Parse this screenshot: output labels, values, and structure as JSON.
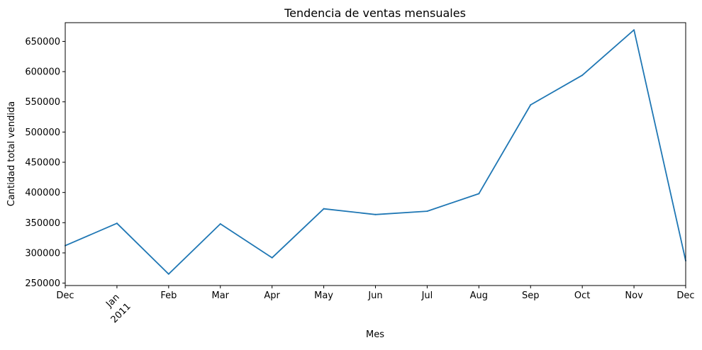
{
  "chart_data": {
    "type": "line",
    "title": "Tendencia de ventas mensuales",
    "xlabel": "Mes",
    "ylabel": "Cantidad total vendida",
    "x": [
      "2010-12",
      "2011-01",
      "2011-02",
      "2011-03",
      "2011-04",
      "2011-05",
      "2011-06",
      "2011-07",
      "2011-08",
      "2011-09",
      "2011-10",
      "2011-11",
      "2011-12"
    ],
    "x_tick_labels": [
      "Dec",
      "Jan",
      "Feb",
      "Mar",
      "Apr",
      "May",
      "Jun",
      "Jul",
      "Aug",
      "Sep",
      "Oct",
      "Nov",
      "Dec"
    ],
    "x_year_label": "2011",
    "series": [
      {
        "values": [
          312000,
          349000,
          265000,
          348000,
          292000,
          373000,
          363500,
          369000,
          398000,
          545000,
          594000,
          669000,
          287000
        ],
        "color": "#1f77b4"
      }
    ],
    "ylim": [
      246000,
      681000
    ],
    "yticks": [
      250000,
      300000,
      350000,
      400000,
      450000,
      500000,
      550000,
      600000,
      650000
    ],
    "grid": false,
    "legend": "none"
  }
}
